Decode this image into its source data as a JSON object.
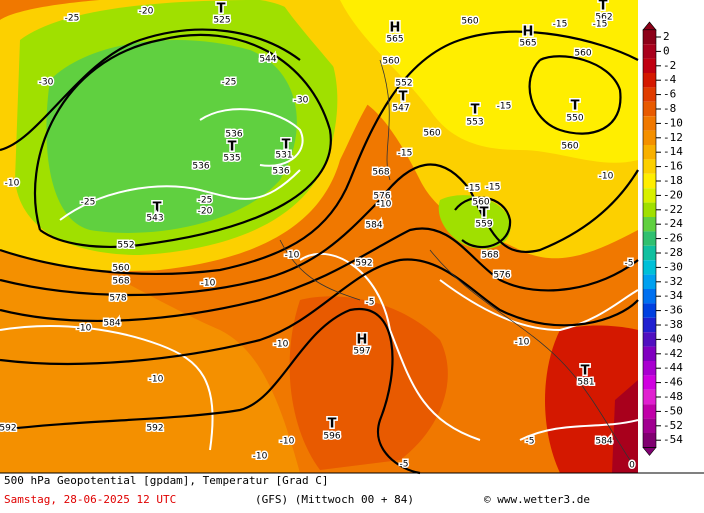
{
  "map": {
    "labels": [
      "T",
      "525",
      "H",
      "565",
      "H",
      "565",
      "T",
      "562",
      "560",
      "560",
      "544",
      "-15",
      "-15",
      "560",
      "T",
      "550",
      "-15",
      "T",
      "553",
      "T",
      "547",
      "552",
      "560",
      "560",
      "-10",
      "T",
      "535",
      "T",
      "531",
      "536",
      "536",
      "536",
      "T",
      "543",
      "552",
      "560",
      "568",
      "578",
      "584",
      "-25",
      "-25",
      "-25",
      "-20",
      "-30",
      "-20",
      "-25",
      "-30",
      "-10",
      "-10",
      "-10",
      "-10",
      "T",
      "559",
      "560",
      "568",
      "576",
      "568",
      "576",
      "584",
      "592",
      "-5",
      "H",
      "597",
      "-10",
      "-10",
      "-10",
      "T",
      "581",
      "T",
      "596",
      "-10",
      "-10",
      "-5",
      "-5",
      "584",
      "592",
      "592",
      "0",
      "-5",
      "-15",
      "-15",
      "-10",
      "-15"
    ]
  },
  "legend": {
    "items": [
      {
        "label": "2",
        "color": "#8c0018"
      },
      {
        "label": "0",
        "color": "#a8001c"
      },
      {
        "label": "-2",
        "color": "#c00010"
      },
      {
        "label": "-4",
        "color": "#d41800"
      },
      {
        "label": "-6",
        "color": "#e03c00"
      },
      {
        "label": "-8",
        "color": "#e85a00"
      },
      {
        "label": "-10",
        "color": "#f07800"
      },
      {
        "label": "-12",
        "color": "#f49000"
      },
      {
        "label": "-14",
        "color": "#f8b000"
      },
      {
        "label": "-16",
        "color": "#fcd000"
      },
      {
        "label": "-18",
        "color": "#ffee00"
      },
      {
        "label": "-20",
        "color": "#d8f000"
      },
      {
        "label": "-22",
        "color": "#a0e000"
      },
      {
        "label": "-24",
        "color": "#60d040"
      },
      {
        "label": "-26",
        "color": "#30c070"
      },
      {
        "label": "-28",
        "color": "#10c0a0"
      },
      {
        "label": "-30",
        "color": "#00c0d8"
      },
      {
        "label": "-32",
        "color": "#00a0f0"
      },
      {
        "label": "-34",
        "color": "#0070f0"
      },
      {
        "label": "-36",
        "color": "#0040e0"
      },
      {
        "label": "-38",
        "color": "#2020d0"
      },
      {
        "label": "-40",
        "color": "#5010c0"
      },
      {
        "label": "-42",
        "color": "#8000c0"
      },
      {
        "label": "-44",
        "color": "#a800d0"
      },
      {
        "label": "-46",
        "color": "#d000e0"
      },
      {
        "label": "-48",
        "color": "#e020d0"
      },
      {
        "label": "-50",
        "color": "#c000a8"
      },
      {
        "label": "-52",
        "color": "#a00090"
      },
      {
        "label": "-54",
        "color": "#800070"
      }
    ]
  },
  "footer": {
    "line1": "500 hPa Geopotential [gpdam], Temperatur [Grad C]",
    "date": "Samstag, 28-06-2025  12 UTC",
    "model": "(GFS)  (Mittwoch 00 + 84)",
    "credit": "© www.wetter3.de"
  }
}
